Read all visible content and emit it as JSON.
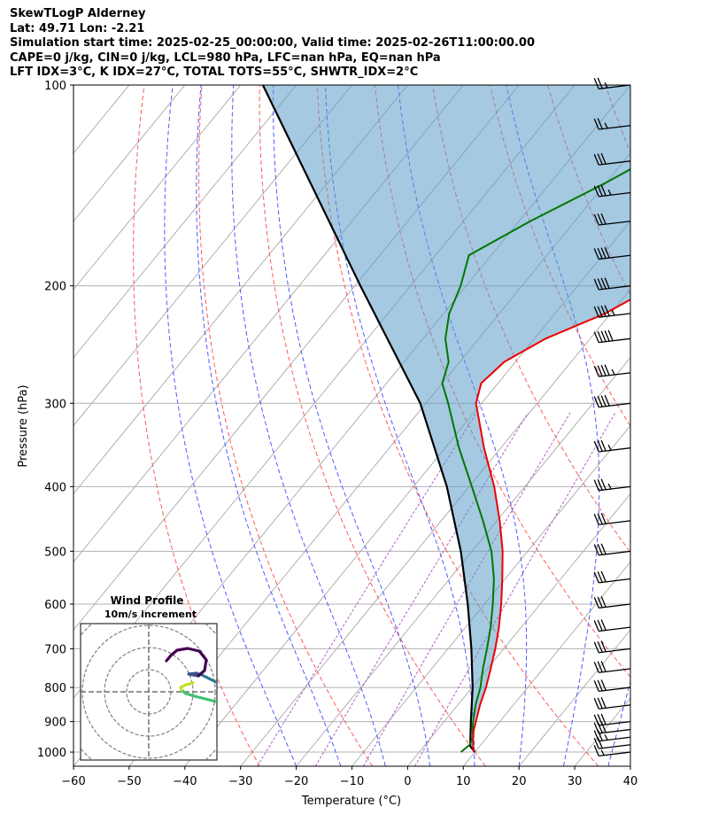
{
  "header": {
    "title": "SkewTLogP Alderney",
    "location": "Lat: 49.71   Lon: -2.21",
    "times": "Simulation start time: 2025-02-25_00:00:00, Valid time: 2025-02-26T11:00:00.00",
    "convective": "CAPE=0 j/kg, CIN=0 j/kg, LCL=980 hPa, LFC=nan hPa, EQ=nan hPa",
    "indices": "LFT IDX=3°C, K IDX=27°C, TOTAL TOTS=55°C, SHWTR_IDX=2°C"
  },
  "chart_data": {
    "type": "skewt-logp",
    "xlabel": "Temperature (°C)",
    "ylabel": "Pressure (hPa)",
    "xlim": [
      -60,
      40
    ],
    "ylim": [
      1050,
      100
    ],
    "x_ticks": [
      -60,
      -50,
      -40,
      -30,
      -20,
      -10,
      0,
      10,
      20,
      30,
      40
    ],
    "p_ticks": [
      1000,
      900,
      800,
      700,
      600,
      500,
      400,
      300,
      200,
      100
    ],
    "log_scale_y": true,
    "grid": true,
    "series": [
      {
        "role": "temperature",
        "color": "#ee0000",
        "points": [
          [
            1000,
            9.8
          ],
          [
            975,
            8.6
          ],
          [
            950,
            7.5
          ],
          [
            925,
            6.5
          ],
          [
            900,
            5.7
          ],
          [
            850,
            4.0
          ],
          [
            800,
            2.5
          ],
          [
            750,
            0.6
          ],
          [
            700,
            -1.5
          ],
          [
            650,
            -4.0
          ],
          [
            600,
            -7.0
          ],
          [
            550,
            -10.5
          ],
          [
            500,
            -14.5
          ],
          [
            450,
            -19.5
          ],
          [
            400,
            -25.5
          ],
          [
            350,
            -33
          ],
          [
            300,
            -41
          ],
          [
            280,
            -43
          ],
          [
            260,
            -42
          ],
          [
            240,
            -38
          ],
          [
            220,
            -31
          ],
          [
            200,
            -26
          ],
          [
            180,
            -21
          ],
          [
            160,
            -19
          ],
          [
            150,
            -17
          ],
          [
            140,
            -14
          ],
          [
            130,
            -9
          ],
          [
            120,
            -4
          ],
          [
            110,
            -1
          ],
          [
            100,
            1
          ]
        ]
      },
      {
        "role": "dewpoint",
        "color": "#007700",
        "points": [
          [
            1000,
            7.5
          ],
          [
            975,
            8.0
          ],
          [
            950,
            7.5
          ],
          [
            925,
            6.3
          ],
          [
            900,
            5.2
          ],
          [
            850,
            3.2
          ],
          [
            800,
            1.5
          ],
          [
            750,
            -0.8
          ],
          [
            700,
            -3.0
          ],
          [
            650,
            -5.5
          ],
          [
            600,
            -8.5
          ],
          [
            550,
            -12.0
          ],
          [
            500,
            -16.5
          ],
          [
            450,
            -22.5
          ],
          [
            400,
            -29.5
          ],
          [
            350,
            -37.5
          ],
          [
            300,
            -46
          ],
          [
            280,
            -50
          ],
          [
            260,
            -52
          ],
          [
            240,
            -56
          ],
          [
            220,
            -59
          ],
          [
            200,
            -61
          ],
          [
            180,
            -64
          ],
          [
            160,
            -58
          ],
          [
            140,
            -50
          ],
          [
            120,
            -42
          ],
          [
            100,
            -33
          ]
        ]
      },
      {
        "role": "parcel",
        "color": "#000000",
        "points": [
          [
            1000,
            10
          ],
          [
            980,
            8.3
          ],
          [
            900,
            4.8
          ],
          [
            800,
            0.1
          ],
          [
            700,
            -5.8
          ],
          [
            600,
            -13.0
          ],
          [
            500,
            -22.0
          ],
          [
            400,
            -34.0
          ],
          [
            300,
            -51
          ],
          [
            200,
            -79
          ],
          [
            100,
            -126
          ]
        ]
      }
    ],
    "wind_barbs": {
      "pressures": [
        1000,
        975,
        950,
        925,
        900,
        850,
        800,
        750,
        700,
        650,
        600,
        550,
        500,
        450,
        400,
        350,
        300,
        270,
        240,
        220,
        200,
        180,
        160,
        145,
        130,
        115,
        100
      ],
      "speeds_kt": [
        15,
        20,
        25,
        30,
        30,
        30,
        30,
        30,
        30,
        30,
        30,
        30,
        30,
        30,
        35,
        35,
        40,
        45,
        50,
        45,
        40,
        40,
        30,
        35,
        30,
        25,
        25
      ]
    },
    "inset": {
      "title": "Wind Profile",
      "subtitle": "10m/s increment"
    }
  }
}
